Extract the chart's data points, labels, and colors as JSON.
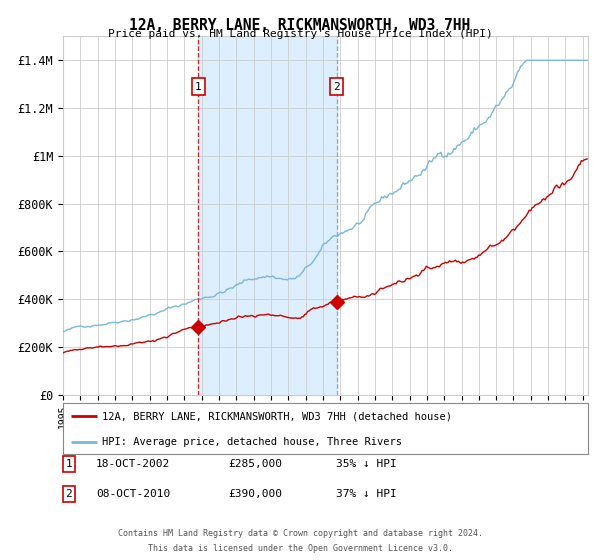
{
  "title": "12A, BERRY LANE, RICKMANSWORTH, WD3 7HH",
  "subtitle": "Price paid vs. HM Land Registry's House Price Index (HPI)",
  "legend_line1": "12A, BERRY LANE, RICKMANSWORTH, WD3 7HH (detached house)",
  "legend_line2": "HPI: Average price, detached house, Three Rivers",
  "footer1": "Contains HM Land Registry data © Crown copyright and database right 2024.",
  "footer2": "This data is licensed under the Open Government Licence v3.0.",
  "annotation1_label": "1",
  "annotation1_date": "18-OCT-2002",
  "annotation1_price": "£285,000",
  "annotation1_hpi": "35% ↓ HPI",
  "annotation2_label": "2",
  "annotation2_date": "08-OCT-2010",
  "annotation2_price": "£390,000",
  "annotation2_hpi": "37% ↓ HPI",
  "red_color": "#cc0000",
  "blue_color": "#7ab8d9",
  "shade_color": "#ddeeff",
  "vline1_color": "#cc0000",
  "vline2_color": "#7799bb",
  "grid_color": "#cccccc",
  "bg_color": "#ffffff",
  "ylim": [
    0,
    1500000
  ],
  "yticks": [
    0,
    200000,
    400000,
    600000,
    800000,
    1000000,
    1200000,
    1400000
  ],
  "ytick_labels": [
    "£0",
    "£200K",
    "£400K",
    "£600K",
    "£800K",
    "£1M",
    "£1.2M",
    "£1.4M"
  ],
  "sale1_year": 2002.8,
  "sale1_price": 285000,
  "sale2_year": 2010.8,
  "sale2_price": 390000,
  "xlim_left": 1995,
  "xlim_right": 2025.3
}
